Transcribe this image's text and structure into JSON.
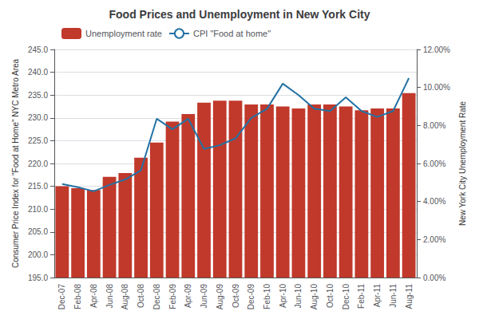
{
  "chart_data": {
    "type": "bar",
    "title": "Food Prices and Unemployment in New York City",
    "ylabel": "Consumer Price Index for \"Food at Home\" NYC Metro Area",
    "y2label": "New York City Unemployment Rate",
    "categories": [
      "Dec-07",
      "Feb-08",
      "Apr-08",
      "Jun-08",
      "Aug-08",
      "Oct-08",
      "Dec-08",
      "Feb-09",
      "Apr-09",
      "Jun-09",
      "Aug-09",
      "Oct-09",
      "Dec-09",
      "Feb-10",
      "Apr-10",
      "Jun-10",
      "Aug-10",
      "Oct-10",
      "Dec-10",
      "Feb-11",
      "Apr-11",
      "Jun-11",
      "Aug-11"
    ],
    "series": [
      {
        "name": "Unemployment rate",
        "type": "bar",
        "axis": "y2",
        "color": "#C0392B",
        "values": [
          0.048,
          0.047,
          0.046,
          0.053,
          0.055,
          0.063,
          0.071,
          0.082,
          0.086,
          0.092,
          0.093,
          0.093,
          0.091,
          0.091,
          0.09,
          0.089,
          0.091,
          0.091,
          0.09,
          0.088,
          0.089,
          0.089,
          0.097
        ]
      },
      {
        "name": "CPI \"Food at home\"",
        "type": "line",
        "axis": "y",
        "color": "#2471A3",
        "values": [
          215.5,
          214.8,
          213.9,
          215.3,
          216.5,
          218.5,
          229.8,
          227.5,
          229.8,
          223.2,
          224.0,
          225.5,
          230.0,
          232.0,
          237.5,
          235.0,
          232.0,
          231.5,
          234.5,
          231.5,
          230.2,
          231.5,
          238.7
        ]
      }
    ],
    "ylim": [
      195.0,
      245.0
    ],
    "yticks": [
      {
        "value": 195.0,
        "label": "195.0"
      },
      {
        "value": 200.0,
        "label": "200.0"
      },
      {
        "value": 205.0,
        "label": "205.0"
      },
      {
        "value": 210.0,
        "label": "210.0"
      },
      {
        "value": 215.0,
        "label": "215.0"
      },
      {
        "value": 220.0,
        "label": "220.0"
      },
      {
        "value": 225.0,
        "label": "225.0"
      },
      {
        "value": 230.0,
        "label": "230.0"
      },
      {
        "value": 235.0,
        "label": "235.0"
      },
      {
        "value": 240.0,
        "label": "240.0"
      },
      {
        "value": 245.0,
        "label": "245.0"
      }
    ],
    "y2lim": [
      0.0,
      0.12
    ],
    "y2ticks": [
      {
        "value": 0.0,
        "label": "0.00%"
      },
      {
        "value": 0.02,
        "label": "2.00%"
      },
      {
        "value": 0.04,
        "label": "4.00%"
      },
      {
        "value": 0.06,
        "label": "6.00%"
      },
      {
        "value": 0.08,
        "label": "8.00%"
      },
      {
        "value": 0.1,
        "label": "10.00%"
      },
      {
        "value": 0.12,
        "label": "12.00%"
      }
    ],
    "grid": true,
    "legend": "upper left"
  }
}
